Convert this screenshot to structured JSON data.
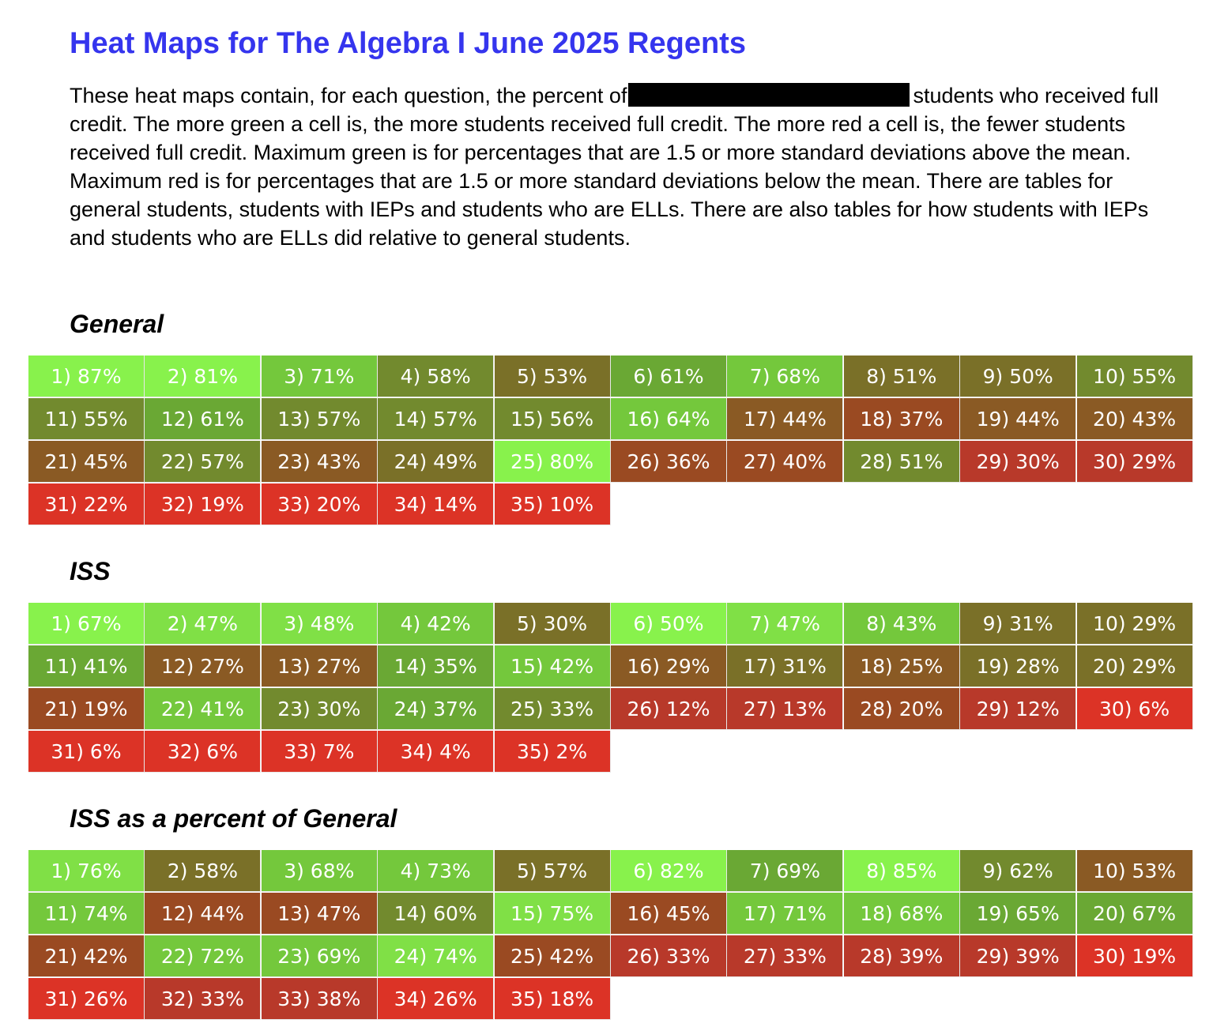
{
  "title": "Heat Maps for The Algebra I June 2025 Regents",
  "intro_before": "These heat maps contain, for each question, the percent of",
  "intro_after": "students who received full credit. The more green a cell is, the more students received full credit. The more red a cell is, the fewer students received full credit. Maximum green is for percentages that are 1.5 or more standard deviations above the mean. Maximum red is for percentages that are 1.5 or more standard deviations below the mean. There are tables for general students, students with IEPs and students who are ELLs. There are also tables for how students with IEPs and students who are ELLs did relative to general students.",
  "tables": [
    {
      "heading": "General",
      "rows": [
        [
          {
            "text": "1) 87%",
            "color": "#88f24c"
          },
          {
            "text": "2) 81%",
            "color": "#88f24c"
          },
          {
            "text": "3) 71%",
            "color": "#74c83c"
          },
          {
            "text": "4) 58%",
            "color": "#728a2e"
          },
          {
            "text": "5) 53%",
            "color": "#7a7028"
          },
          {
            "text": "6) 61%",
            "color": "#6aa834"
          },
          {
            "text": "7) 68%",
            "color": "#74c83c"
          },
          {
            "text": "8) 51%",
            "color": "#7a7028"
          },
          {
            "text": "9) 50%",
            "color": "#7a7028"
          },
          {
            "text": "10) 55%",
            "color": "#728a2e"
          }
        ],
        [
          {
            "text": "11) 55%",
            "color": "#728a2e"
          },
          {
            "text": "12) 61%",
            "color": "#6aa834"
          },
          {
            "text": "13) 57%",
            "color": "#728a2e"
          },
          {
            "text": "14) 57%",
            "color": "#728a2e"
          },
          {
            "text": "15) 56%",
            "color": "#728a2e"
          },
          {
            "text": "16) 64%",
            "color": "#74c83c"
          },
          {
            "text": "17) 44%",
            "color": "#8a5a24"
          },
          {
            "text": "18) 37%",
            "color": "#9a4a22"
          },
          {
            "text": "19) 44%",
            "color": "#8a5a24"
          },
          {
            "text": "20) 43%",
            "color": "#8a5a24"
          }
        ],
        [
          {
            "text": "21) 45%",
            "color": "#8a5a24"
          },
          {
            "text": "22) 57%",
            "color": "#728a2e"
          },
          {
            "text": "23) 43%",
            "color": "#8a5a24"
          },
          {
            "text": "24) 49%",
            "color": "#7a7028"
          },
          {
            "text": "25) 80%",
            "color": "#88f24c"
          },
          {
            "text": "26) 36%",
            "color": "#9a4a22"
          },
          {
            "text": "27) 40%",
            "color": "#9a4a22"
          },
          {
            "text": "28) 51%",
            "color": "#728a2e"
          },
          {
            "text": "29) 30%",
            "color": "#b8392a"
          },
          {
            "text": "30) 29%",
            "color": "#b8392a"
          }
        ],
        [
          {
            "text": "31) 22%",
            "color": "#dc3326"
          },
          {
            "text": "32) 19%",
            "color": "#dc3326"
          },
          {
            "text": "33) 20%",
            "color": "#dc3326"
          },
          {
            "text": "34) 14%",
            "color": "#dc3326"
          },
          {
            "text": "35) 10%",
            "color": "#dc3326"
          }
        ]
      ]
    },
    {
      "heading": "ISS",
      "rows": [
        [
          {
            "text": "1) 67%",
            "color": "#88f24c"
          },
          {
            "text": "2) 47%",
            "color": "#80e046"
          },
          {
            "text": "3) 48%",
            "color": "#80e046"
          },
          {
            "text": "4) 42%",
            "color": "#74c83c"
          },
          {
            "text": "5) 30%",
            "color": "#7a7028"
          },
          {
            "text": "6) 50%",
            "color": "#88f24c"
          },
          {
            "text": "7) 47%",
            "color": "#80e046"
          },
          {
            "text": "8) 43%",
            "color": "#74c83c"
          },
          {
            "text": "9) 31%",
            "color": "#7a7028"
          },
          {
            "text": "10) 29%",
            "color": "#7a7028"
          }
        ],
        [
          {
            "text": "11) 41%",
            "color": "#6aa834"
          },
          {
            "text": "12) 27%",
            "color": "#8a5a24"
          },
          {
            "text": "13) 27%",
            "color": "#8a5a24"
          },
          {
            "text": "14) 35%",
            "color": "#6aa834"
          },
          {
            "text": "15) 42%",
            "color": "#74c83c"
          },
          {
            "text": "16) 29%",
            "color": "#8a5a24"
          },
          {
            "text": "17) 31%",
            "color": "#7a7028"
          },
          {
            "text": "18) 25%",
            "color": "#8a5a24"
          },
          {
            "text": "19) 28%",
            "color": "#7a7028"
          },
          {
            "text": "20) 29%",
            "color": "#7a7028"
          }
        ],
        [
          {
            "text": "21) 19%",
            "color": "#9a4a22"
          },
          {
            "text": "22) 41%",
            "color": "#74c83c"
          },
          {
            "text": "23) 30%",
            "color": "#728a2e"
          },
          {
            "text": "24) 37%",
            "color": "#6aa834"
          },
          {
            "text": "25) 33%",
            "color": "#728a2e"
          },
          {
            "text": "26) 12%",
            "color": "#b8392a"
          },
          {
            "text": "27) 13%",
            "color": "#b8392a"
          },
          {
            "text": "28) 20%",
            "color": "#9a4a22"
          },
          {
            "text": "29) 12%",
            "color": "#b8392a"
          },
          {
            "text": "30) 6%",
            "color": "#dc3326"
          }
        ],
        [
          {
            "text": "31) 6%",
            "color": "#dc3326"
          },
          {
            "text": "32) 6%",
            "color": "#dc3326"
          },
          {
            "text": "33) 7%",
            "color": "#dc3326"
          },
          {
            "text": "34) 4%",
            "color": "#dc3326"
          },
          {
            "text": "35) 2%",
            "color": "#dc3326"
          }
        ]
      ]
    },
    {
      "heading": "ISS as a percent of General",
      "rows": [
        [
          {
            "text": "1) 76%",
            "color": "#80e046"
          },
          {
            "text": "2) 58%",
            "color": "#7a7028"
          },
          {
            "text": "3) 68%",
            "color": "#74c83c"
          },
          {
            "text": "4) 73%",
            "color": "#74c83c"
          },
          {
            "text": "5) 57%",
            "color": "#7a7028"
          },
          {
            "text": "6) 82%",
            "color": "#88f24c"
          },
          {
            "text": "7) 69%",
            "color": "#6aa834"
          },
          {
            "text": "8) 85%",
            "color": "#88f24c"
          },
          {
            "text": "9) 62%",
            "color": "#728a2e"
          },
          {
            "text": "10) 53%",
            "color": "#8a5a24"
          }
        ],
        [
          {
            "text": "11) 74%",
            "color": "#74c83c"
          },
          {
            "text": "12) 44%",
            "color": "#9a4a22"
          },
          {
            "text": "13) 47%",
            "color": "#9a4a22"
          },
          {
            "text": "14) 60%",
            "color": "#728a2e"
          },
          {
            "text": "15) 75%",
            "color": "#80e046"
          },
          {
            "text": "16) 45%",
            "color": "#9a4a22"
          },
          {
            "text": "17) 71%",
            "color": "#74c83c"
          },
          {
            "text": "18) 68%",
            "color": "#74c83c"
          },
          {
            "text": "19) 65%",
            "color": "#6aa834"
          },
          {
            "text": "20) 67%",
            "color": "#6aa834"
          }
        ],
        [
          {
            "text": "21) 42%",
            "color": "#9a4a22"
          },
          {
            "text": "22) 72%",
            "color": "#74c83c"
          },
          {
            "text": "23) 69%",
            "color": "#74c83c"
          },
          {
            "text": "24) 74%",
            "color": "#80e046"
          },
          {
            "text": "25) 42%",
            "color": "#9a4a22"
          },
          {
            "text": "26) 33%",
            "color": "#b8392a"
          },
          {
            "text": "27) 33%",
            "color": "#b8392a"
          },
          {
            "text": "28) 39%",
            "color": "#b8392a"
          },
          {
            "text": "29) 39%",
            "color": "#b8392a"
          },
          {
            "text": "30) 19%",
            "color": "#dc3326"
          }
        ],
        [
          {
            "text": "31) 26%",
            "color": "#dc3326"
          },
          {
            "text": "32) 33%",
            "color": "#b8392a"
          },
          {
            "text": "33) 38%",
            "color": "#b8392a"
          },
          {
            "text": "34) 26%",
            "color": "#dc3326"
          },
          {
            "text": "35) 18%",
            "color": "#dc3326"
          }
        ]
      ]
    }
  ]
}
